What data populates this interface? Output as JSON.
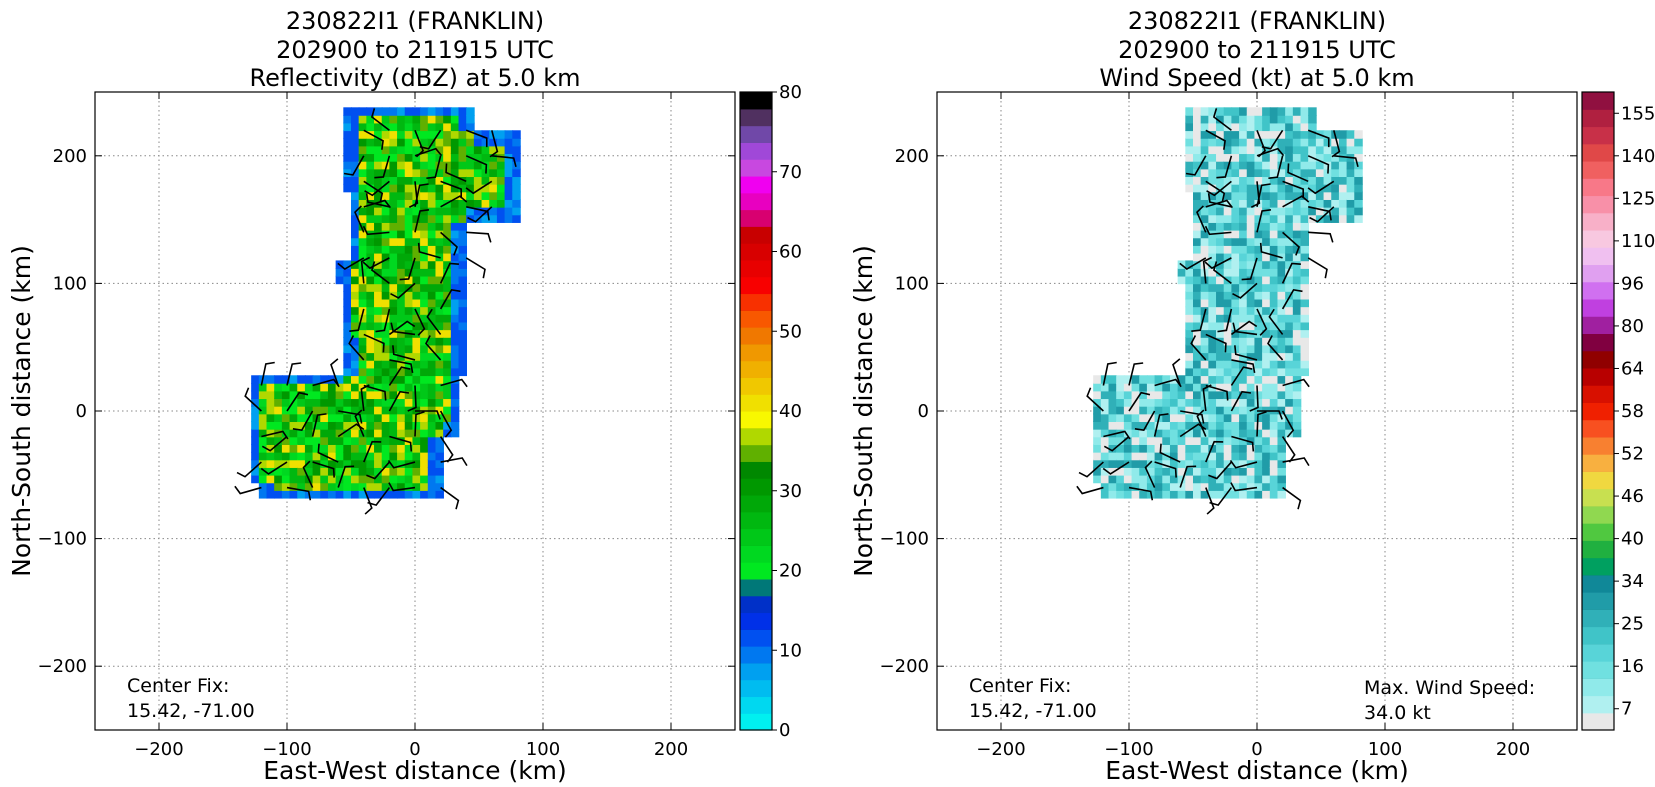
{
  "chart_data": [
    {
      "type": "heatmap",
      "title_lines": [
        "230822I1 (FRANKLIN)",
        "202900 to 211915 UTC",
        "Reflectivity (dBZ) at 5.0 km"
      ],
      "xlabel": "East-West distance (km)",
      "ylabel": "North-South distance (km)",
      "xlim": [
        -250,
        250
      ],
      "ylim": [
        -250,
        250
      ],
      "xticks": [
        -200,
        -100,
        0,
        100,
        200
      ],
      "yticks": [
        -200,
        -100,
        0,
        100,
        200
      ],
      "grid": true,
      "annotations": {
        "center_fix_label": "Center Fix:",
        "center_fix_value": "15.42, -71.00"
      },
      "colorbar": {
        "levels": [
          0,
          2.5,
          5,
          7.5,
          10,
          12.5,
          15,
          17.5,
          20,
          22.5,
          25,
          27.5,
          30,
          32.5,
          35,
          37.5,
          40,
          42.5,
          45,
          47.5,
          50,
          52.5,
          55,
          57.5,
          60,
          62.5,
          65,
          67.5,
          70,
          72.5,
          75,
          77.5,
          80
        ],
        "colors": [
          "#00f0f0",
          "#00d8f0",
          "#00bcf0",
          "#00a0f0",
          "#0078f0",
          "#0050f0",
          "#0030e8",
          "#0030c8",
          "#007878",
          "#00e820",
          "#00d820",
          "#00c818",
          "#00b810",
          "#00a808",
          "#009800",
          "#008800",
          "#60b000",
          "#b0d800",
          "#f8f800",
          "#f0e000",
          "#f0c800",
          "#f0b000",
          "#f09800",
          "#f07800",
          "#f85800",
          "#f83000",
          "#f80000",
          "#e80000",
          "#d80000",
          "#c80000",
          "#d80070",
          "#e800c0",
          "#f000f0",
          "#c848e0",
          "#a048d8",
          "#7048a8",
          "#503060",
          "#000000"
        ],
        "tick_labels": [
          "0",
          "10",
          "20",
          "30",
          "40",
          "50",
          "60",
          "70",
          "80"
        ],
        "tick_values": [
          0,
          10,
          20,
          30,
          40,
          50,
          60,
          70,
          80
        ]
      },
      "field": {
        "units": "dBZ",
        "approx_extent_km": {
          "north_band": {
            "x": [
              -60,
              80
            ],
            "y": [
              120,
              240
            ]
          },
          "central_band": {
            "x": [
              -60,
              35
            ],
            "y": [
              30,
              160
            ]
          },
          "southwest_block": {
            "x": [
              -130,
              35
            ],
            "y": [
              -70,
              35
            ]
          }
        },
        "typical_value_range_dbz": [
          10,
          40
        ]
      }
    },
    {
      "type": "heatmap",
      "title_lines": [
        "230822I1 (FRANKLIN)",
        "202900 to 211915 UTC",
        "Wind Speed (kt) at 5.0 km"
      ],
      "xlabel": "East-West distance (km)",
      "ylabel": "North-South distance (km)",
      "xlim": [
        -250,
        250
      ],
      "ylim": [
        -250,
        250
      ],
      "xticks": [
        -200,
        -100,
        0,
        100,
        200
      ],
      "yticks": [
        -200,
        -100,
        0,
        100,
        200
      ],
      "grid": true,
      "annotations": {
        "center_fix_label": "Center Fix:",
        "center_fix_value": "15.42, -71.00",
        "max_wind_label": "Max. Wind Speed:",
        "max_wind_value": "34.0 kt"
      },
      "colorbar": {
        "tick_labels": [
          "7",
          "16",
          "25",
          "34",
          "40",
          "46",
          "52",
          "58",
          "64",
          "80",
          "96",
          "110",
          "125",
          "140",
          "155"
        ],
        "colors": [
          "#e8e8e8",
          "#b0f0f0",
          "#90eaea",
          "#70e0e0",
          "#58d4d8",
          "#40c4c8",
          "#30b0b8",
          "#209ca8",
          "#108898",
          "#00a060",
          "#20b040",
          "#50c840",
          "#90d850",
          "#c8e050",
          "#f0d840",
          "#f8b040",
          "#f88030",
          "#f85020",
          "#f02000",
          "#d81000",
          "#b80000",
          "#900000",
          "#800040",
          "#a020a0",
          "#c040e0",
          "#d070f0",
          "#e0a0f0",
          "#f0c0f0",
          "#f8c8e0",
          "#f8b0c8",
          "#f890a8",
          "#f87888",
          "#f06060",
          "#e04848",
          "#c83048",
          "#b02040",
          "#901040"
        ],
        "tick_values": [
          7,
          16,
          25,
          34,
          40,
          46,
          52,
          58,
          64,
          80,
          96,
          110,
          125,
          140,
          155
        ]
      },
      "field": {
        "units": "kt",
        "max": 34.0,
        "typical_value_range_kt": [
          7,
          34
        ]
      }
    }
  ]
}
